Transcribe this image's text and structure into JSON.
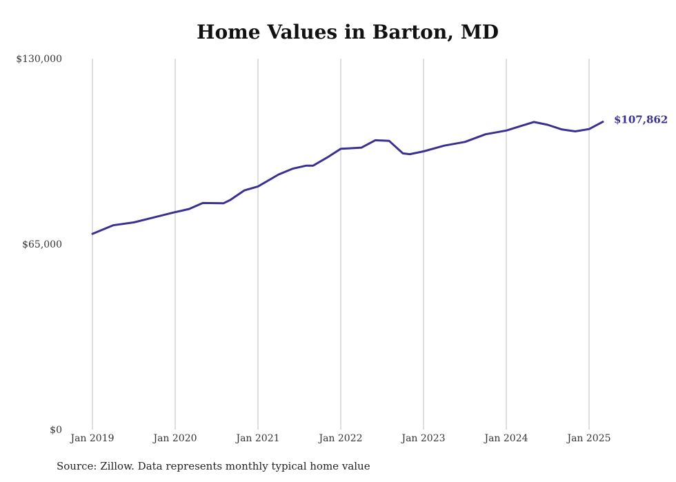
{
  "chart_data": {
    "type": "line",
    "title": "Home Values in Barton, MD",
    "source": "Source: Zillow. Data represents monthly typical home value",
    "ylim": [
      0,
      130000
    ],
    "xlim": [
      "2019-01",
      "2025-12"
    ],
    "y_ticks": [
      {
        "value": 0,
        "label": "$0"
      },
      {
        "value": 65000,
        "label": "$65,000"
      },
      {
        "value": 130000,
        "label": "$130,000"
      }
    ],
    "x_ticks": [
      {
        "date": "2019-01",
        "label": "Jan 2019"
      },
      {
        "date": "2020-01",
        "label": "Jan 2020"
      },
      {
        "date": "2021-01",
        "label": "Jan 2021"
      },
      {
        "date": "2022-01",
        "label": "Jan 2022"
      },
      {
        "date": "2023-01",
        "label": "Jan 2023"
      },
      {
        "date": "2024-01",
        "label": "Jan 2024"
      },
      {
        "date": "2025-01",
        "label": "Jan 2025"
      }
    ],
    "grid": "vertical",
    "line_color": "#3a3090",
    "end_label": "$107,862",
    "series": [
      {
        "points": [
          {
            "x": "2019-01",
            "y": 68600
          },
          {
            "x": "2019-04",
            "y": 71600
          },
          {
            "x": "2019-07",
            "y": 72600
          },
          {
            "x": "2019-10",
            "y": 74400
          },
          {
            "x": "2020-01",
            "y": 76200
          },
          {
            "x": "2020-03",
            "y": 77300
          },
          {
            "x": "2020-05",
            "y": 79400
          },
          {
            "x": "2020-08",
            "y": 79300
          },
          {
            "x": "2020-09",
            "y": 80500
          },
          {
            "x": "2020-11",
            "y": 83800
          },
          {
            "x": "2021-01",
            "y": 85200
          },
          {
            "x": "2021-04",
            "y": 89400
          },
          {
            "x": "2021-06",
            "y": 91400
          },
          {
            "x": "2021-08",
            "y": 92500
          },
          {
            "x": "2021-09",
            "y": 92500
          },
          {
            "x": "2021-11",
            "y": 95300
          },
          {
            "x": "2022-01",
            "y": 98400
          },
          {
            "x": "2022-04",
            "y": 98800
          },
          {
            "x": "2022-06",
            "y": 101400
          },
          {
            "x": "2022-08",
            "y": 101200
          },
          {
            "x": "2022-10",
            "y": 96800
          },
          {
            "x": "2022-11",
            "y": 96500
          },
          {
            "x": "2023-01",
            "y": 97500
          },
          {
            "x": "2023-04",
            "y": 99500
          },
          {
            "x": "2023-07",
            "y": 100800
          },
          {
            "x": "2023-10",
            "y": 103500
          },
          {
            "x": "2024-01",
            "y": 104800
          },
          {
            "x": "2024-03",
            "y": 106300
          },
          {
            "x": "2024-05",
            "y": 107800
          },
          {
            "x": "2024-07",
            "y": 106800
          },
          {
            "x": "2024-09",
            "y": 105200
          },
          {
            "x": "2024-11",
            "y": 104500
          },
          {
            "x": "2025-01",
            "y": 105300
          },
          {
            "x": "2025-03",
            "y": 107862
          }
        ]
      }
    ]
  }
}
